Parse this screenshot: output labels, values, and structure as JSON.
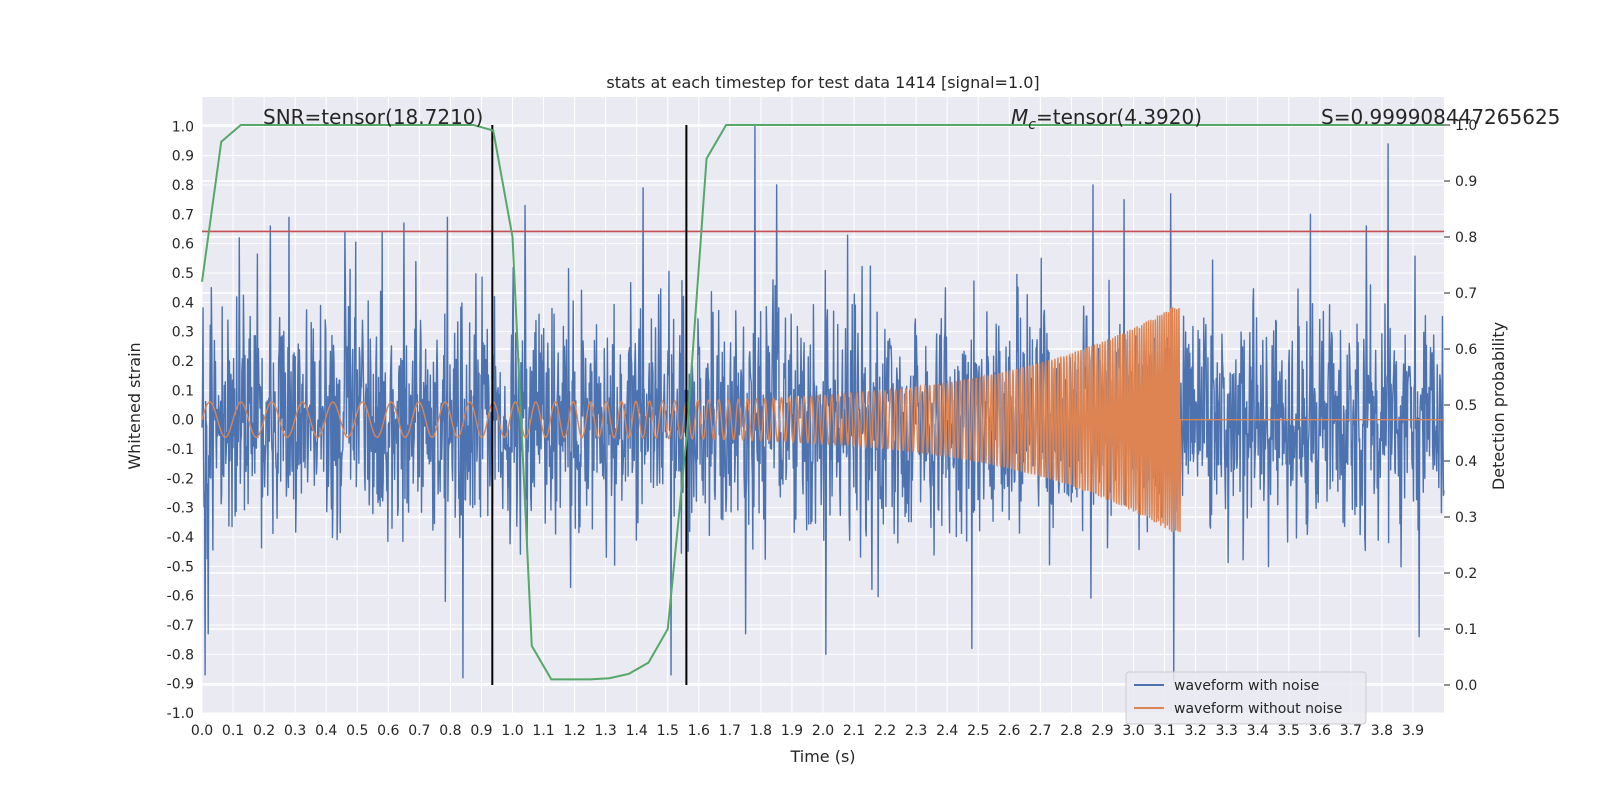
{
  "chart_data": {
    "type": "line",
    "title": "stats at each timestep for test data 1414 [signal=1.0]",
    "xlabel": "Time (s)",
    "ylabel": "Whitened strain",
    "y2label": "Detection probability",
    "xlim": [
      0.0,
      4.0
    ],
    "ylim": [
      -1.0,
      1.1
    ],
    "y2lim": [
      -0.05,
      1.05
    ],
    "x_ticks": [
      "0.0",
      "0.1",
      "0.2",
      "0.3",
      "0.4",
      "0.5",
      "0.6",
      "0.7",
      "0.8",
      "0.9",
      "1.0",
      "1.1",
      "1.2",
      "1.3",
      "1.4",
      "1.5",
      "1.6",
      "1.7",
      "1.8",
      "1.9",
      "2.0",
      "2.1",
      "2.2",
      "2.3",
      "2.4",
      "2.5",
      "2.6",
      "2.7",
      "2.8",
      "2.9",
      "3.0",
      "3.1",
      "3.2",
      "3.3",
      "3.4",
      "3.5",
      "3.6",
      "3.7",
      "3.8",
      "3.9"
    ],
    "y_ticks": [
      "-1.0",
      "-0.9",
      "-0.8",
      "-0.7",
      "-0.6",
      "-0.5",
      "-0.4",
      "-0.3",
      "-0.2",
      "-0.1",
      "0.0",
      "0.1",
      "0.2",
      "0.3",
      "0.4",
      "0.5",
      "0.6",
      "0.7",
      "0.8",
      "0.9",
      "1.0"
    ],
    "y2_ticks": [
      "0.0",
      "0.1",
      "0.2",
      "0.3",
      "0.4",
      "0.5",
      "0.6",
      "0.7",
      "0.8",
      "0.9",
      "1.0"
    ],
    "annotations": {
      "snr": "SNR=tensor(18.7210)",
      "mc_symbol": "M",
      "mc_sub": "c",
      "mc_value": "=tensor(4.3920)",
      "s": "S=0.999908447265625"
    },
    "threshold": {
      "value": 0.81,
      "color": "#c44e52"
    },
    "vlines": [
      0.935,
      1.56
    ],
    "noise_series": {
      "name": "waveform with noise",
      "color": "#4c72b0",
      "sigma": 0.2,
      "peaks": [
        {
          "t": 0.01,
          "v": -0.87
        },
        {
          "t": 0.02,
          "v": -0.73
        },
        {
          "t": 0.03,
          "v": 0.45
        },
        {
          "t": 0.12,
          "v": 0.62
        },
        {
          "t": 0.22,
          "v": 0.66
        },
        {
          "t": 0.28,
          "v": 0.69
        },
        {
          "t": 0.46,
          "v": 0.64
        },
        {
          "t": 0.58,
          "v": 0.64
        },
        {
          "t": 0.65,
          "v": 0.67
        },
        {
          "t": 0.79,
          "v": 0.69
        },
        {
          "t": 0.84,
          "v": -0.88
        },
        {
          "t": 1.04,
          "v": 0.73
        },
        {
          "t": 1.42,
          "v": 0.79
        },
        {
          "t": 1.51,
          "v": -0.87
        },
        {
          "t": 1.78,
          "v": 1.0
        },
        {
          "t": 1.85,
          "v": 0.8
        },
        {
          "t": 1.75,
          "v": -0.73
        },
        {
          "t": 2.01,
          "v": -0.8
        },
        {
          "t": 2.48,
          "v": -0.78
        },
        {
          "t": 2.87,
          "v": 0.8
        },
        {
          "t": 2.97,
          "v": 0.75
        },
        {
          "t": 3.12,
          "v": 0.77
        },
        {
          "t": 3.13,
          "v": -0.89
        },
        {
          "t": 3.82,
          "v": 0.94
        },
        {
          "t": 3.75,
          "v": 0.66
        },
        {
          "t": 3.92,
          "v": -0.74
        },
        {
          "t": 3.57,
          "v": 0.7
        }
      ]
    },
    "clean_series": {
      "name": "waveform without noise",
      "color": "#dd8452",
      "t_start": 0.0,
      "t_merge": 3.15,
      "amp_start": 0.06,
      "amp_merge": 0.4,
      "freq_start": 10.0,
      "freq_merge": 150.0
    },
    "probability_series": {
      "name": "Detection probability",
      "color": "#55a868",
      "x": [
        0.0,
        0.062,
        0.125,
        0.188,
        0.25,
        0.312,
        0.375,
        0.438,
        0.5,
        0.562,
        0.625,
        0.688,
        0.75,
        0.812,
        0.875,
        0.938,
        1.0,
        1.062,
        1.125,
        1.188,
        1.25,
        1.312,
        1.375,
        1.438,
        1.5,
        1.562,
        1.625,
        1.688,
        1.75,
        1.812,
        1.875,
        1.938,
        2.0,
        2.5,
        3.0,
        3.5,
        4.0
      ],
      "y": [
        0.72,
        0.97,
        1.0,
        1.0,
        1.0,
        1.0,
        1.0,
        1.0,
        1.0,
        1.0,
        1.0,
        1.0,
        1.0,
        1.0,
        1.0,
        0.99,
        0.8,
        0.07,
        0.01,
        0.01,
        0.01,
        0.012,
        0.02,
        0.04,
        0.1,
        0.45,
        0.94,
        1.0,
        1.0,
        1.0,
        1.0,
        1.0,
        1.0,
        1.0,
        1.0,
        1.0,
        1.0
      ]
    },
    "legend": [
      {
        "label": "waveform with noise",
        "color": "#4c72b0"
      },
      {
        "label": "waveform without noise",
        "color": "#dd8452"
      }
    ],
    "legend_position": "lower-right",
    "grid": true,
    "style": {
      "plot_background": "#eaeaf2"
    }
  }
}
